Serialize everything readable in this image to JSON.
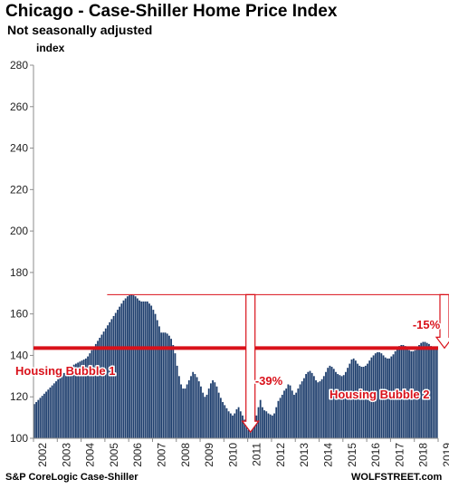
{
  "header": {
    "title": "Chicago - Case-Shiller Home Price Index",
    "subtitle": "Not seasonally adjusted"
  },
  "footer": {
    "source": "S&P CoreLogic Case-Shiller",
    "brand": "WOLFSTREET.com"
  },
  "chart_data": {
    "type": "bar",
    "title": "Chicago - Case-Shiller Home Price Index",
    "subtitle": "Not seasonally adjusted",
    "ylabel": "index",
    "xlabel": "",
    "ylim": [
      100,
      280
    ],
    "y_ticks": [
      100,
      120,
      140,
      160,
      180,
      200,
      220,
      240,
      260,
      280
    ],
    "x_tick_labels": [
      "2002",
      "2003",
      "2004",
      "2005",
      "2006",
      "2007",
      "2008",
      "2009",
      "2010",
      "2011",
      "2012",
      "2013",
      "2014",
      "2015",
      "2016",
      "2017",
      "2018",
      "2019"
    ],
    "start_year": 2002,
    "grid": false,
    "bar_color": "#1f3f6e",
    "annotation_color": "#d9111a",
    "reference_line": {
      "value": 143.5
    },
    "series": [
      {
        "values": [
          116.5,
          117.5,
          118.5,
          119.5,
          120.5,
          121.5,
          122.5,
          123.5,
          124.5,
          125.5,
          126.5,
          127.5,
          128.5,
          129.5,
          130.5,
          131.5,
          132.5,
          133.5,
          134.5,
          135,
          135.5,
          136,
          136.5,
          137,
          137.5,
          138,
          138.5,
          139.5,
          141,
          142.5,
          144,
          145.5,
          147,
          148.5,
          150,
          151.5,
          153,
          154.5,
          156,
          157.5,
          159,
          160.5,
          162,
          163.5,
          165,
          166.5,
          167.5,
          168.5,
          169,
          169.3,
          169,
          168.5,
          167.5,
          166.5,
          166,
          166,
          166,
          166,
          165,
          164,
          162,
          160,
          157,
          154,
          151,
          151,
          151,
          150.5,
          149.5,
          148,
          145,
          141,
          135,
          130,
          126,
          124,
          124,
          126,
          128,
          130,
          132,
          131,
          129.5,
          127.5,
          125,
          122,
          120,
          121,
          124,
          126.5,
          128,
          127,
          125,
          122,
          119.5,
          117.5,
          116,
          114.5,
          113,
          112,
          111,
          112,
          114,
          115,
          113,
          111,
          109,
          106,
          104,
          103,
          105,
          108,
          111,
          115,
          118.5,
          115,
          113.5,
          113,
          112,
          111.5,
          111,
          112,
          115,
          118,
          119.5,
          121,
          123,
          124,
          126,
          125.5,
          123,
          121,
          122,
          124,
          126,
          127.5,
          129,
          131,
          132,
          132.5,
          131.5,
          130,
          128,
          127,
          127.5,
          128.5,
          130,
          132,
          134,
          135,
          134.5,
          133.5,
          132,
          131,
          130.5,
          130,
          130.5,
          132,
          134,
          136,
          138,
          138.5,
          137.5,
          136,
          135,
          134.5,
          134.5,
          135,
          136,
          137.5,
          139,
          140,
          141,
          141.5,
          141.5,
          141,
          140,
          139,
          138.5,
          138.5,
          139.5,
          140.5,
          142,
          143.5,
          144.5,
          145,
          145,
          144.5,
          143.5,
          142.5,
          142,
          142,
          142.5,
          143.5,
          145,
          146,
          146.5,
          146.5,
          146,
          145.5,
          144.5,
          143.5,
          143,
          143
        ]
      }
    ],
    "annotations": [
      {
        "text": "Housing Bubble 1"
      },
      {
        "text": "Housing Bubble 2"
      },
      {
        "text": "-39%"
      },
      {
        "text": "-15%"
      }
    ]
  }
}
